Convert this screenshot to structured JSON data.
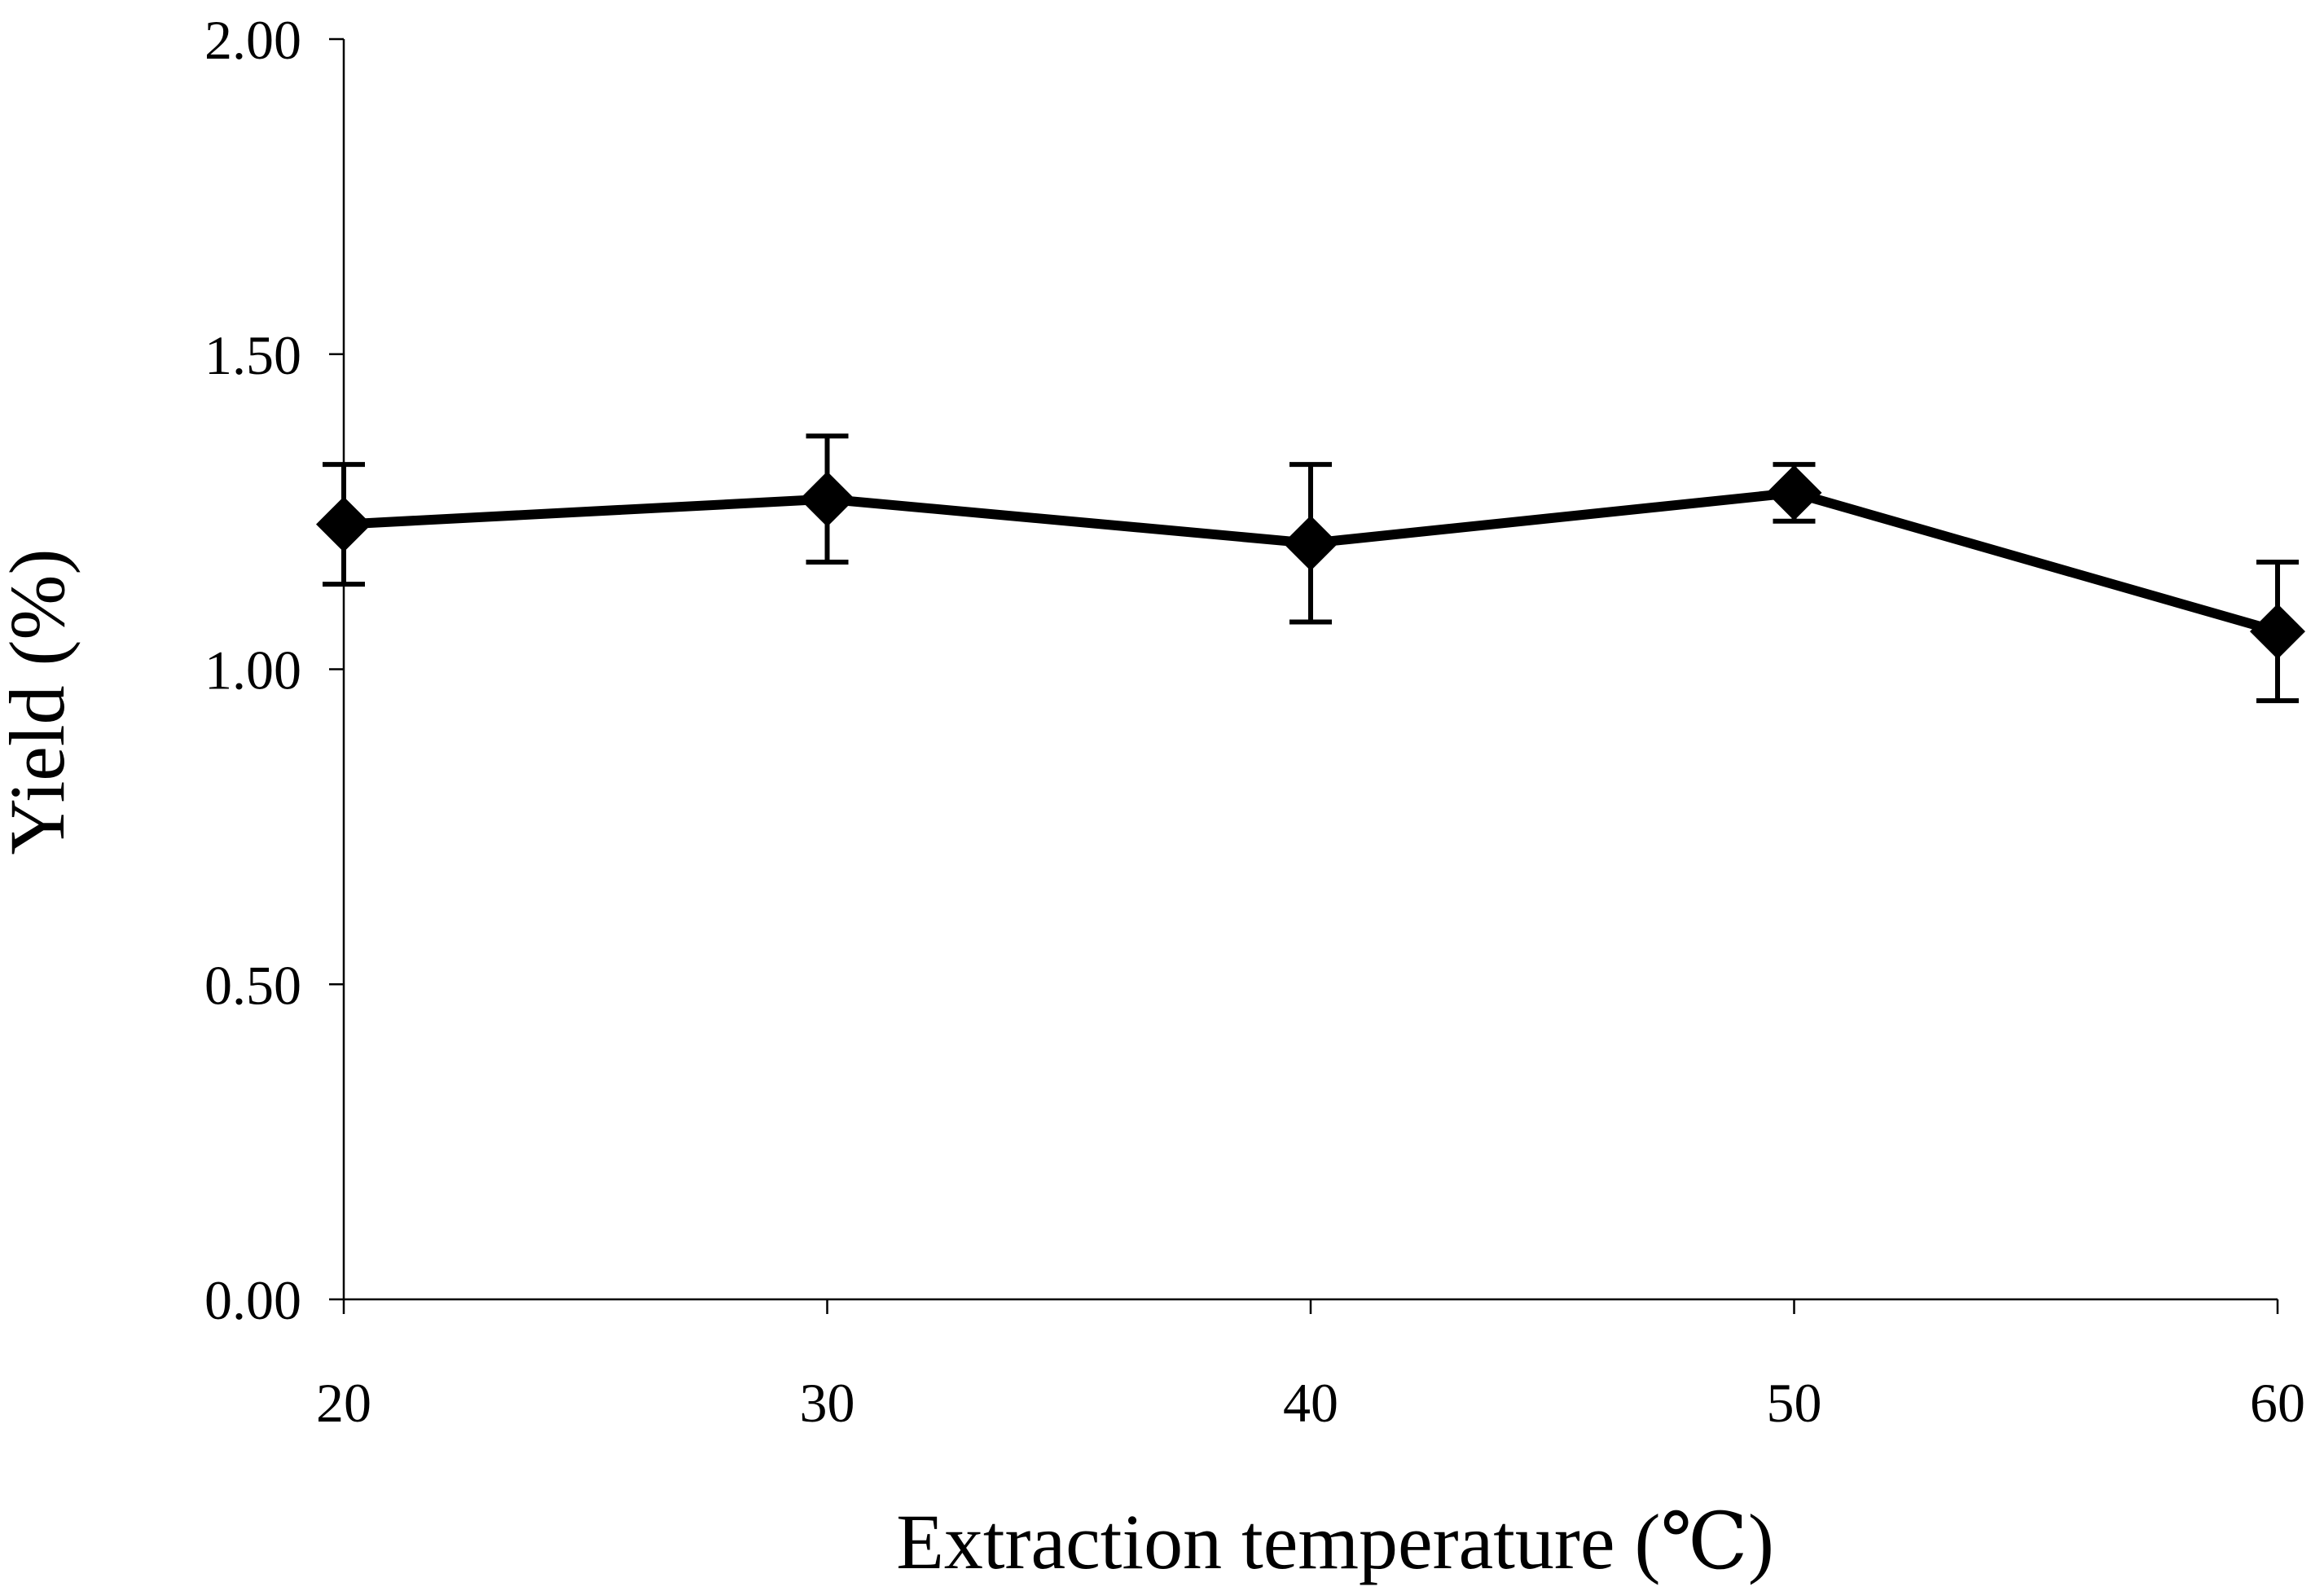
{
  "chart_data": {
    "type": "line",
    "title": "",
    "xlabel": "Extraction temperature (℃)",
    "ylabel": "Yield (%)",
    "x": [
      20,
      30,
      40,
      50,
      60
    ],
    "x_tick_labels": [
      "20",
      "30",
      "40",
      "50",
      "60"
    ],
    "xlim": [
      20,
      60
    ],
    "ylim": [
      0,
      2
    ],
    "y_ticks": [
      0,
      0.5,
      1.0,
      1.5,
      2.0
    ],
    "y_tick_labels": [
      "0.00",
      "0.50",
      "1.00",
      "1.50",
      "2.00"
    ],
    "grid": false,
    "legend": "none",
    "series": [
      {
        "name": "Yield",
        "marker": "diamond",
        "color": "#000000",
        "values": [
          1.23,
          1.27,
          1.2,
          1.28,
          1.06
        ],
        "error": [
          0.095,
          0.1,
          0.125,
          0.045,
          0.11
        ]
      }
    ]
  }
}
